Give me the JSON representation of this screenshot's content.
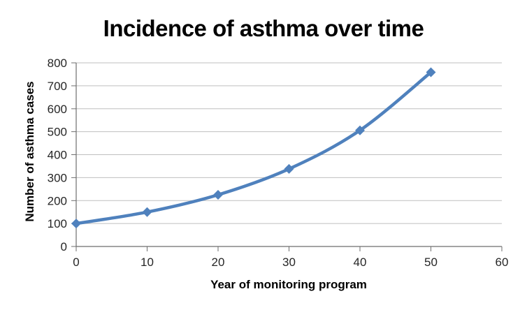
{
  "chart_data": {
    "type": "line",
    "title": "Incidence of asthma over time",
    "xlabel": "Year of monitoring program",
    "ylabel": "Number of asthma cases",
    "x": [
      0,
      10,
      20,
      30,
      40,
      50
    ],
    "values": [
      100,
      150,
      225,
      338,
      506,
      759
    ],
    "x_range": [
      0,
      60
    ],
    "y_range": [
      0,
      800
    ],
    "x_ticks": [
      0,
      10,
      20,
      30,
      40,
      50,
      60
    ],
    "y_ticks": [
      0,
      100,
      200,
      300,
      400,
      500,
      600,
      700,
      800
    ],
    "grid": "horizontal",
    "legend": "none",
    "marker": "diamond",
    "line_smooth": true,
    "colors": {
      "line": "#4F81BD",
      "gridline": "#BFBFBF",
      "axis": "#6E6E6E",
      "tick_text": "#262626",
      "title_text": "#000000"
    }
  }
}
